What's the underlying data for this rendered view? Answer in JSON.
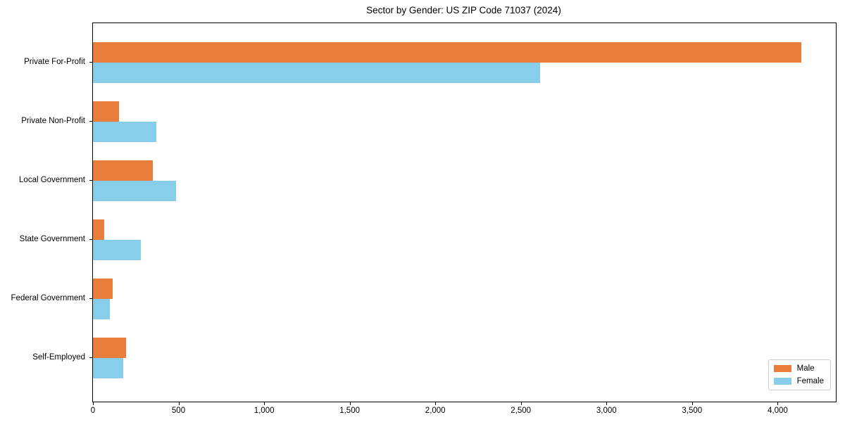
{
  "chart_data": {
    "type": "bar",
    "orientation": "horizontal",
    "title": "Sector by Gender: US ZIP Code 71037 (2024)",
    "categories": [
      "Private For-Profit",
      "Private Non-Profit",
      "Local Government",
      "State Government",
      "Federal Government",
      "Self-Employed"
    ],
    "series": [
      {
        "name": "Male",
        "color": "#e87d3c",
        "values": [
          4140,
          150,
          350,
          65,
          115,
          195
        ]
      },
      {
        "name": "Female",
        "color": "#87ceeb",
        "values": [
          2610,
          370,
          485,
          280,
          100,
          175
        ]
      }
    ],
    "xlabel": "",
    "ylabel": "",
    "xlim": [
      0,
      4340
    ],
    "xticks": {
      "values": [
        0,
        500,
        1000,
        1500,
        2000,
        2500,
        3000,
        3500,
        4000
      ],
      "labels": [
        "0",
        "500",
        "1,000",
        "1,500",
        "2,000",
        "2,500",
        "3,000",
        "3,500",
        "4,000"
      ]
    },
    "grid": false,
    "legend": {
      "position": "lower right",
      "entries": [
        "Male",
        "Female"
      ]
    }
  },
  "colors": {
    "background": "#ffffff",
    "spine": "#000000",
    "text": "#000000",
    "legend_border": "#cccccc",
    "male": "#e87d3c",
    "female": "#87ceeb"
  }
}
